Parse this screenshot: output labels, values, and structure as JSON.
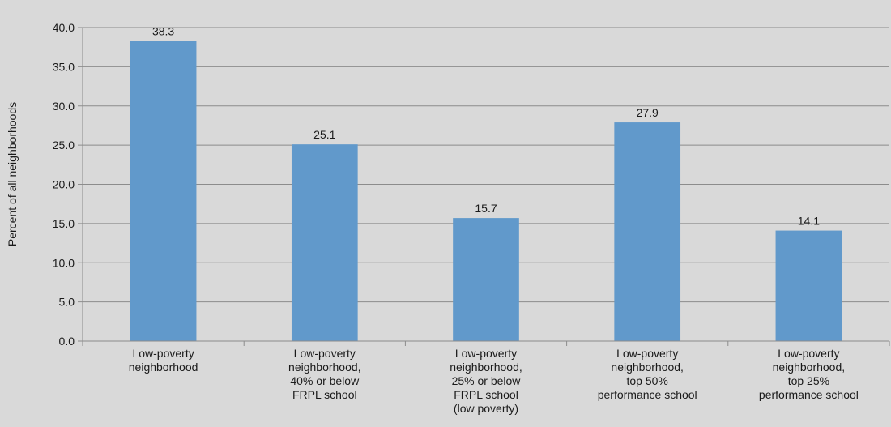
{
  "chart_data": {
    "type": "bar",
    "title": "",
    "xlabel": "",
    "ylabel": "Percent of all neighborhoods",
    "ylim": [
      0,
      40
    ],
    "ytick_step": 5,
    "ytick_labels": [
      "0.0",
      "5.0",
      "10.0",
      "15.0",
      "20.0",
      "25.0",
      "30.0",
      "35.0",
      "40.0"
    ],
    "grid": true,
    "legend": "none",
    "categories": [
      [
        "Low-poverty",
        "neighborhood"
      ],
      [
        "Low-poverty",
        "neighborhood,",
        "40% or below",
        "FRPL school"
      ],
      [
        "Low-poverty",
        "neighborhood,",
        "25% or below",
        "FRPL school",
        "(low poverty)"
      ],
      [
        "Low-poverty",
        "neighborhood,",
        "top 50%",
        "performance school"
      ],
      [
        "Low-poverty",
        "neighborhood,",
        "top 25%",
        "performance school"
      ]
    ],
    "values": [
      38.3,
      25.1,
      15.7,
      27.9,
      14.1
    ],
    "value_labels": [
      "38.3",
      "25.1",
      "15.7",
      "27.9",
      "14.1"
    ],
    "colors": {
      "bar": "#6199cb",
      "background": "#d9d9d9",
      "grid": "#8c8c8c",
      "axis": "#8c8c8c",
      "text": "#1a1a1a"
    }
  }
}
